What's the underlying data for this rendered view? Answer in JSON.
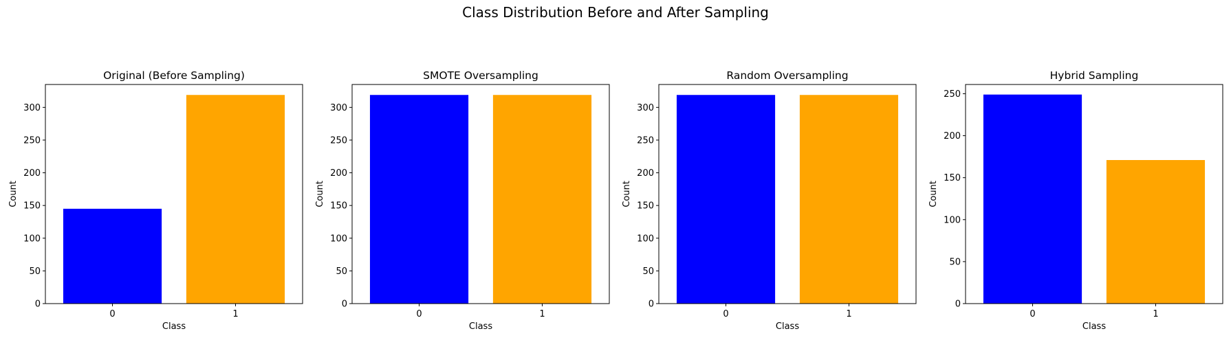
{
  "suptitle": "Class Distribution Before and After Sampling",
  "colors": {
    "class_0": "#0000ff",
    "class_1": "#ffa500"
  },
  "chart_data": [
    {
      "type": "bar",
      "title": "Original (Before Sampling)",
      "xlabel": "Class",
      "ylabel": "Count",
      "categories": [
        "0",
        "1"
      ],
      "values": [
        145,
        319
      ],
      "ylim": [
        0,
        335
      ],
      "yticks": [
        0,
        50,
        100,
        150,
        200,
        250,
        300
      ]
    },
    {
      "type": "bar",
      "title": "SMOTE Oversampling",
      "xlabel": "Class",
      "ylabel": "Count",
      "categories": [
        "0",
        "1"
      ],
      "values": [
        319,
        319
      ],
      "ylim": [
        0,
        335
      ],
      "yticks": [
        0,
        50,
        100,
        150,
        200,
        250,
        300
      ]
    },
    {
      "type": "bar",
      "title": "Random Oversampling",
      "xlabel": "Class",
      "ylabel": "Count",
      "categories": [
        "0",
        "1"
      ],
      "values": [
        319,
        319
      ],
      "ylim": [
        0,
        335
      ],
      "yticks": [
        0,
        50,
        100,
        150,
        200,
        250,
        300
      ]
    },
    {
      "type": "bar",
      "title": "Hybrid Sampling",
      "xlabel": "Class",
      "ylabel": "Count",
      "categories": [
        "0",
        "1"
      ],
      "values": [
        249,
        171
      ],
      "ylim": [
        0,
        261
      ],
      "yticks": [
        0,
        50,
        100,
        150,
        200,
        250
      ]
    }
  ]
}
